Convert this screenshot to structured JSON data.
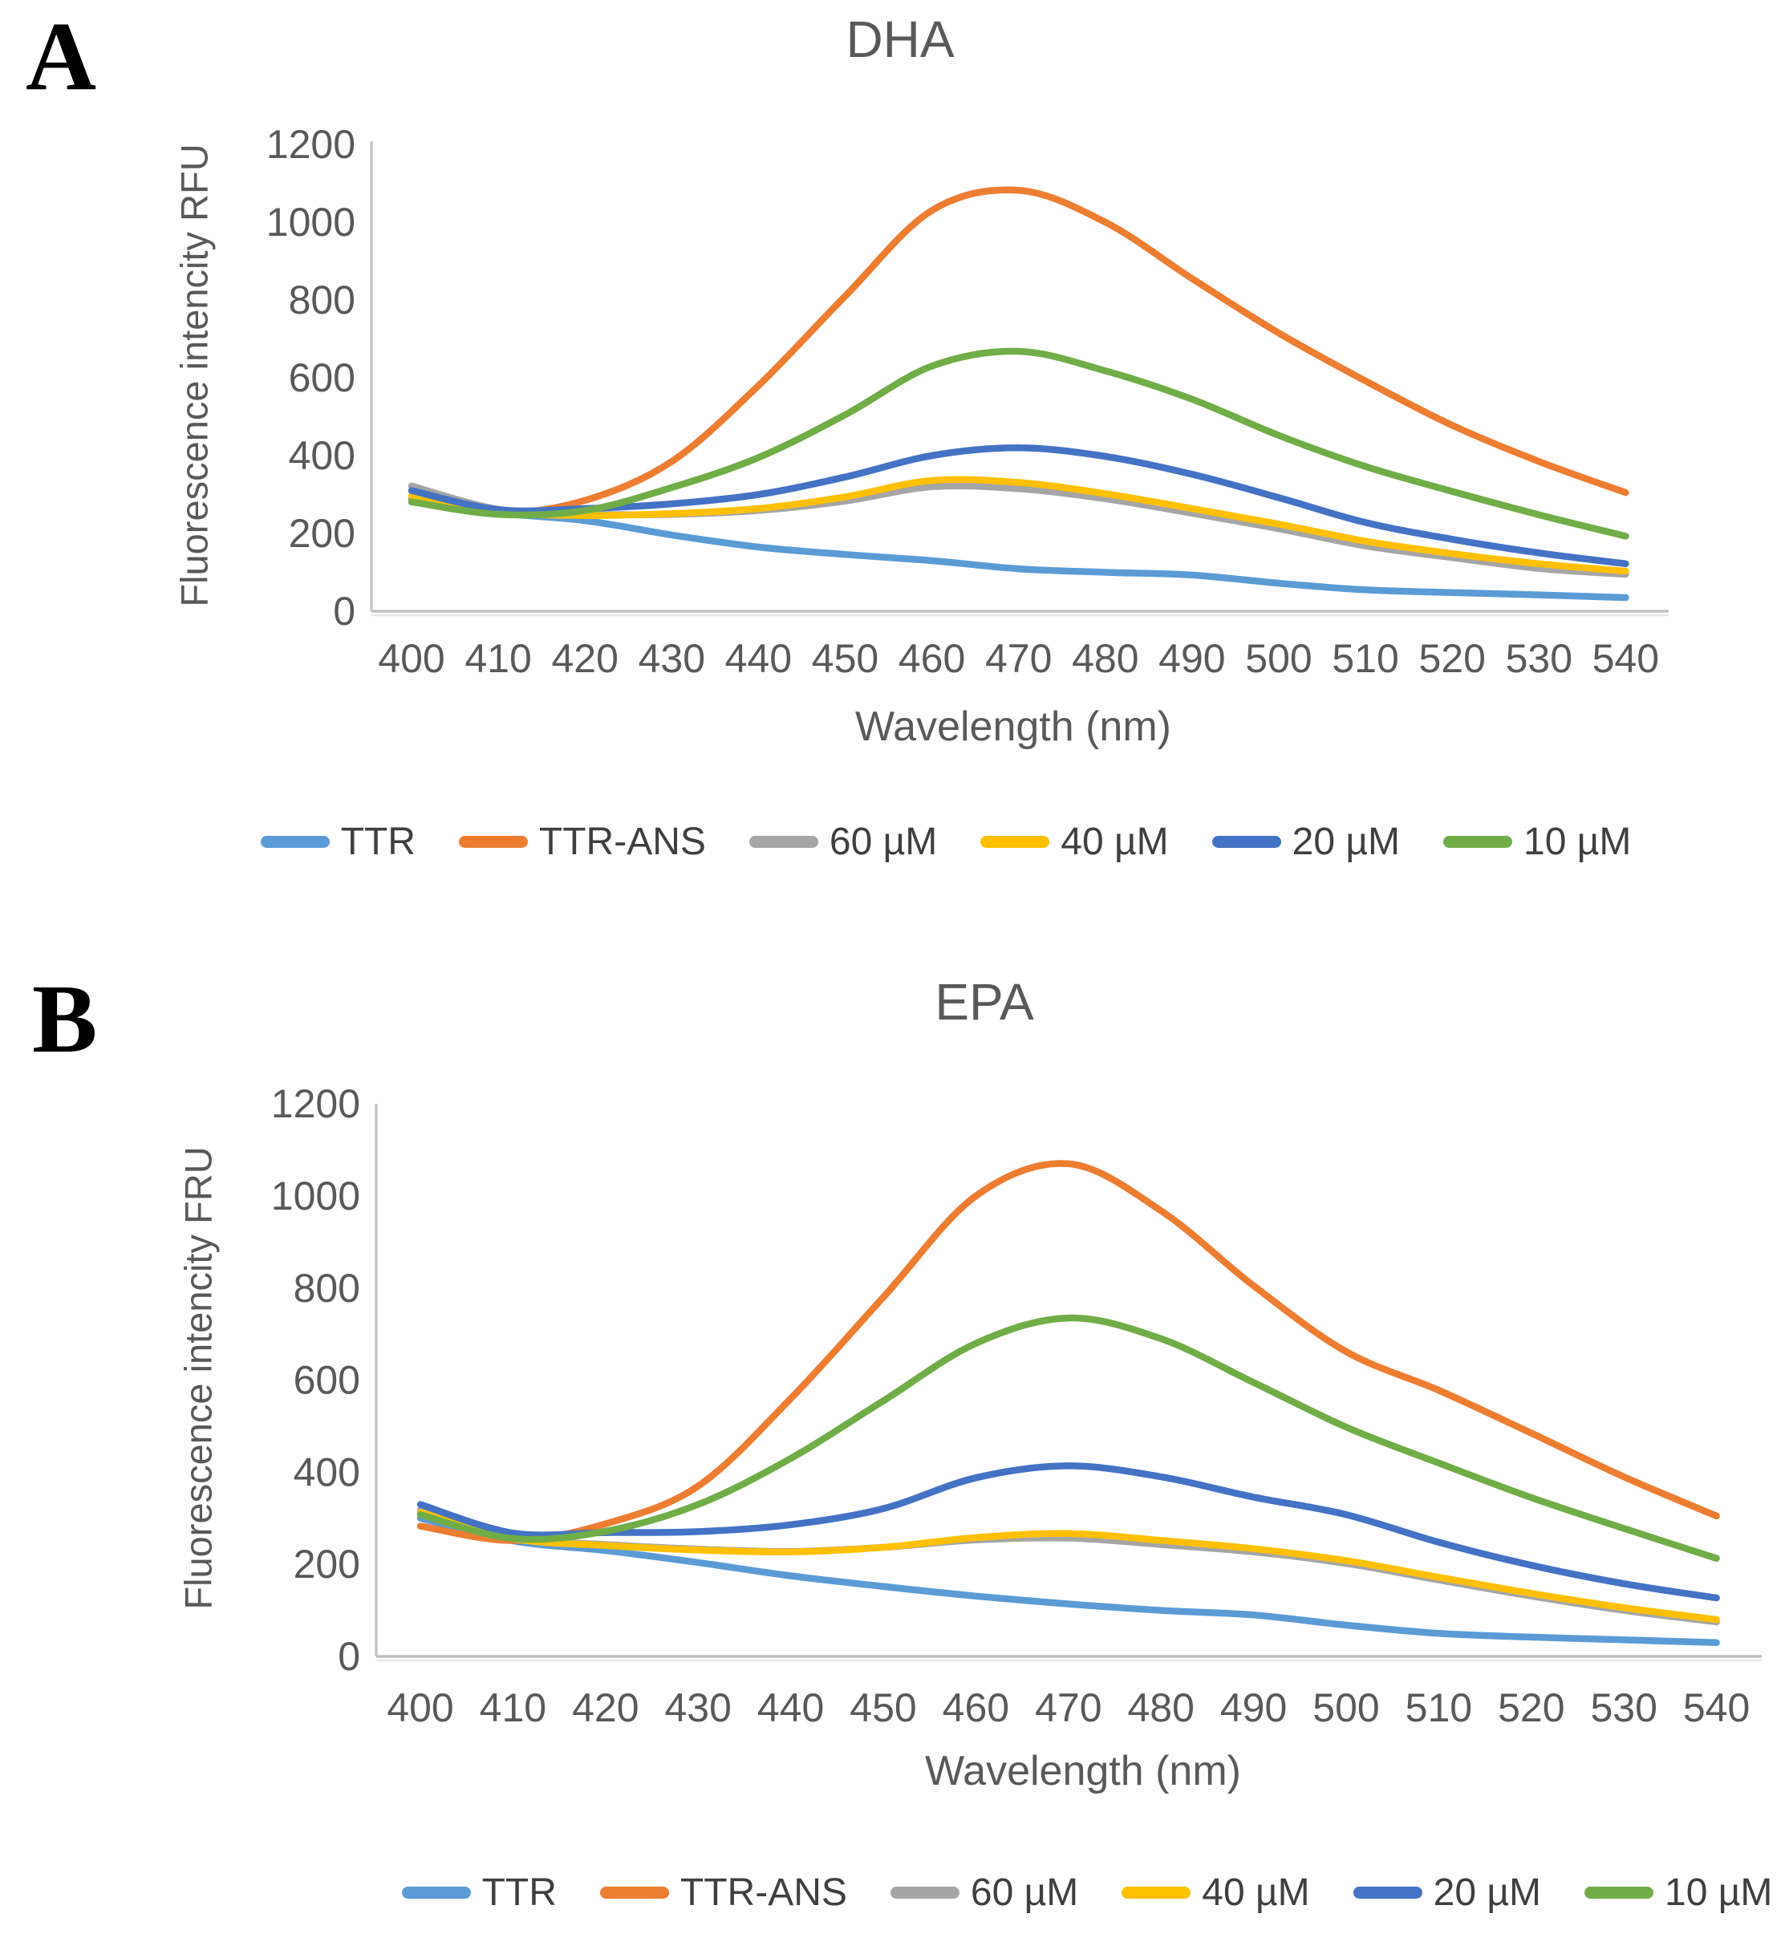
{
  "figure": {
    "panel_a_letter": "A",
    "panel_b_letter": "B"
  },
  "legend_labels": [
    "TTR",
    "TTR-ANS",
    "60 µM",
    "40 µM",
    "20 µM",
    "10 µM"
  ],
  "colors": {
    "ttr": "#5B9BD5",
    "ttr_ans": "#ED7D31",
    "c60um": "#A5A5A5",
    "c40um": "#FFC000",
    "c20um": "#4472C4",
    "c10um": "#70AD47",
    "axis_text": "#595959",
    "axis_line": "#C6C6C6",
    "title_text": "#595959"
  },
  "chart_data": [
    {
      "type": "line",
      "panel_letter": "A",
      "title": "DHA",
      "xlabel": "Wavelength (nm)",
      "ylabel": "Fluorescence intencity RFU",
      "x": [
        400,
        410,
        420,
        430,
        440,
        450,
        460,
        470,
        480,
        490,
        500,
        510,
        520,
        530,
        540
      ],
      "ylim": [
        0,
        1200
      ],
      "ytick_step": 200,
      "grid": false,
      "legend_position": "bottom",
      "series": [
        {
          "name": "TTR",
          "color": "#5B9BD5",
          "values": [
            290,
            253,
            233,
            196,
            165,
            146,
            130,
            109,
            100,
            93,
            72,
            55,
            48,
            42,
            35
          ]
        },
        {
          "name": "TTR-ANS",
          "color": "#ED7D31",
          "values": [
            284,
            252,
            285,
            385,
            580,
            810,
            1030,
            1082,
            1000,
            855,
            715,
            592,
            478,
            385,
            305
          ]
        },
        {
          "name": "60 µM",
          "color": "#A5A5A5",
          "values": [
            322,
            262,
            250,
            249,
            259,
            283,
            320,
            315,
            289,
            252,
            212,
            168,
            138,
            110,
            95
          ]
        },
        {
          "name": "40 µM",
          "color": "#FFC000",
          "values": [
            297,
            255,
            246,
            251,
            264,
            294,
            336,
            331,
            302,
            264,
            224,
            180,
            148,
            122,
            103
          ]
        },
        {
          "name": "20 µM",
          "color": "#4472C4",
          "values": [
            310,
            261,
            264,
            276,
            300,
            345,
            400,
            420,
            398,
            352,
            292,
            228,
            185,
            150,
            122
          ]
        },
        {
          "name": "10 µM",
          "color": "#70AD47",
          "values": [
            281,
            249,
            259,
            318,
            395,
            505,
            630,
            668,
            618,
            545,
            452,
            372,
            308,
            248,
            193
          ]
        }
      ]
    },
    {
      "type": "line",
      "panel_letter": "B",
      "title": "EPA",
      "xlabel": "Wavelength (nm)",
      "ylabel": "Fluorescence intencity FRU",
      "x": [
        400,
        410,
        420,
        430,
        440,
        450,
        460,
        470,
        480,
        490,
        500,
        510,
        520,
        530,
        540
      ],
      "ylim": [
        0,
        1200
      ],
      "ytick_step": 200,
      "grid": false,
      "legend_position": "bottom",
      "series": [
        {
          "name": "TTR",
          "color": "#5B9BD5",
          "values": [
            300,
            251,
            230,
            204,
            175,
            152,
            131,
            114,
            100,
            90,
            68,
            50,
            42,
            36,
            30
          ]
        },
        {
          "name": "TTR-ANS",
          "color": "#ED7D31",
          "values": [
            283,
            252,
            288,
            370,
            560,
            780,
            1000,
            1070,
            968,
            805,
            662,
            578,
            485,
            390,
            305
          ]
        },
        {
          "name": "60 µM",
          "color": "#A5A5A5",
          "values": [
            318,
            258,
            243,
            233,
            228,
            237,
            253,
            257,
            243,
            227,
            202,
            166,
            131,
            100,
            75
          ]
        },
        {
          "name": "40 µM",
          "color": "#FFC000",
          "values": [
            313,
            256,
            241,
            231,
            227,
            237,
            258,
            267,
            252,
            234,
            208,
            172,
            137,
            106,
            80
          ]
        },
        {
          "name": "20 µM",
          "color": "#4472C4",
          "values": [
            330,
            268,
            269,
            271,
            286,
            321,
            388,
            414,
            390,
            346,
            308,
            248,
            198,
            158,
            127
          ]
        },
        {
          "name": "10 µM",
          "color": "#70AD47",
          "values": [
            308,
            256,
            272,
            330,
            430,
            555,
            680,
            735,
            690,
            595,
            498,
            420,
            345,
            278,
            213
          ]
        }
      ]
    }
  ]
}
